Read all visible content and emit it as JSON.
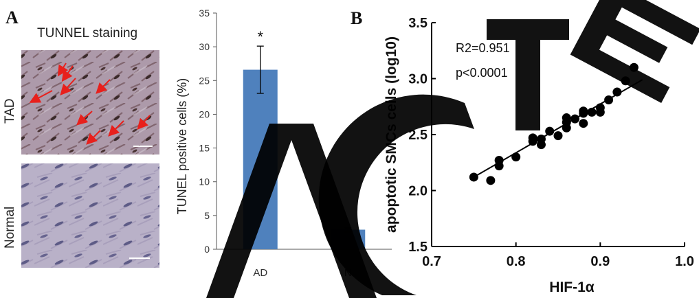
{
  "figure": {
    "panel_a_letter": "A",
    "panel_b_letter": "B",
    "staining_caption": "TUNNEL staining",
    "row_labels": [
      "TAD",
      "Normal"
    ],
    "watermark_text": "RETRACTED",
    "colors": {
      "bar": "#4f81bd",
      "micro_bg": "#b7aec6",
      "arrow": "#e8201c",
      "watermark": "#000000"
    }
  },
  "chart_data": [
    {
      "type": "bar",
      "categories": [
        "AD",
        "N"
      ],
      "values": [
        26.6,
        2.9
      ],
      "errors": [
        3.5,
        0.3
      ],
      "significance": [
        "*",
        ""
      ],
      "title": "",
      "xlabel": "",
      "ylabel": "TUNEL positive cells (%)",
      "ylim": [
        0,
        35
      ],
      "yticks": [
        0,
        5,
        10,
        15,
        20,
        25,
        30,
        35
      ],
      "grid": false
    },
    {
      "type": "scatter",
      "title": "",
      "xlabel": "HIF-1α",
      "ylabel": "apoptotic SMCs cells (log10)",
      "xlim": [
        0.7,
        1.0
      ],
      "ylim": [
        1.5,
        3.5
      ],
      "xticks": [
        0.7,
        0.8,
        0.9,
        1.0
      ],
      "xtick_labels": [
        "0.7",
        "0.8",
        "0.9",
        "1.0"
      ],
      "yticks": [
        1.5,
        2.0,
        2.5,
        3.0,
        3.5
      ],
      "ytick_labels": [
        "1.5",
        "2.0",
        "2.5",
        "3.0",
        "3.5"
      ],
      "annotations": [
        "R2=0.951",
        "p<0.0001"
      ],
      "trendline": {
        "x": [
          0.75,
          0.95
        ],
        "y": [
          2.12,
          2.99
        ]
      },
      "points": [
        [
          0.75,
          2.12
        ],
        [
          0.77,
          2.09
        ],
        [
          0.78,
          2.22
        ],
        [
          0.78,
          2.27
        ],
        [
          0.8,
          2.3
        ],
        [
          0.82,
          2.44
        ],
        [
          0.82,
          2.47
        ],
        [
          0.83,
          2.41
        ],
        [
          0.83,
          2.46
        ],
        [
          0.84,
          2.53
        ],
        [
          0.85,
          2.49
        ],
        [
          0.86,
          2.56
        ],
        [
          0.86,
          2.61
        ],
        [
          0.86,
          2.65
        ],
        [
          0.87,
          2.64
        ],
        [
          0.88,
          2.6
        ],
        [
          0.88,
          2.69
        ],
        [
          0.88,
          2.71
        ],
        [
          0.89,
          2.7
        ],
        [
          0.9,
          2.7
        ],
        [
          0.9,
          2.74
        ],
        [
          0.91,
          2.81
        ],
        [
          0.92,
          2.88
        ],
        [
          0.93,
          2.98
        ],
        [
          0.94,
          3.1
        ]
      ]
    }
  ]
}
